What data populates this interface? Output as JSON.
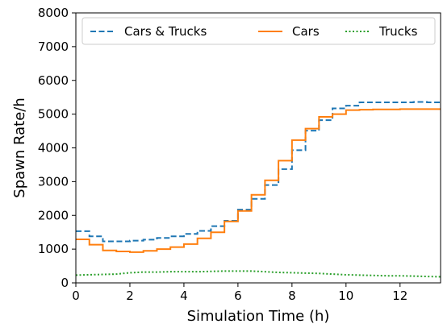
{
  "chart_data": {
    "type": "line",
    "xlabel": "Simulation Time (h)",
    "ylabel": "Spawn Rate/h",
    "xlim": [
      0,
      13.5
    ],
    "ylim": [
      0,
      8000
    ],
    "xticks": [
      0,
      2,
      4,
      6,
      8,
      10,
      12
    ],
    "yticks": [
      0,
      1000,
      2000,
      3000,
      4000,
      5000,
      6000,
      7000,
      8000
    ],
    "grid": false,
    "legend_position": "top",
    "series": [
      {
        "name": "Cars & Trucks",
        "color": "#1f77b4",
        "style": "dashed",
        "step": true,
        "x": [
          0,
          0.5,
          1,
          1.5,
          2,
          2.5,
          3,
          3.5,
          4,
          4.5,
          5,
          5.5,
          6,
          6.5,
          7,
          7.5,
          8,
          8.5,
          9,
          9.5,
          10,
          10.5,
          11,
          11.5,
          12,
          12.5,
          13,
          13.5
        ],
        "y": [
          1530,
          1380,
          1230,
          1230,
          1250,
          1280,
          1330,
          1380,
          1450,
          1540,
          1680,
          1840,
          2170,
          2490,
          2900,
          3370,
          3930,
          4510,
          4820,
          5170,
          5250,
          5350,
          5350,
          5350,
          5350,
          5360,
          5350,
          5350
        ]
      },
      {
        "name": "Cars",
        "color": "#ff7f0e",
        "style": "solid",
        "step": true,
        "x": [
          0,
          0.5,
          1,
          1.5,
          2,
          2.5,
          3,
          3.5,
          4,
          4.5,
          5,
          5.5,
          6,
          6.5,
          7,
          7.5,
          8,
          8.5,
          9,
          9.5,
          10,
          10.5,
          11,
          11.5,
          12,
          12.5,
          13,
          13.5
        ],
        "y": [
          1290,
          1130,
          960,
          930,
          910,
          950,
          1000,
          1060,
          1150,
          1320,
          1500,
          1820,
          2130,
          2610,
          3040,
          3620,
          4230,
          4570,
          4920,
          5000,
          5120,
          5130,
          5140,
          5140,
          5150,
          5150,
          5150,
          5150
        ]
      },
      {
        "name": "Trucks",
        "color": "#2ca02c",
        "style": "dotted",
        "step": false,
        "x": [
          0,
          0.5,
          1,
          1.5,
          2,
          2.5,
          3,
          3.5,
          4,
          4.5,
          5,
          5.5,
          6,
          6.5,
          7,
          7.5,
          8,
          8.5,
          9,
          9.5,
          10,
          10.5,
          11,
          11.5,
          12,
          12.5,
          13,
          13.5
        ],
        "y": [
          230,
          240,
          250,
          260,
          300,
          320,
          320,
          330,
          330,
          330,
          340,
          350,
          350,
          350,
          330,
          310,
          300,
          290,
          280,
          260,
          240,
          230,
          220,
          210,
          210,
          200,
          190,
          180
        ]
      }
    ]
  }
}
